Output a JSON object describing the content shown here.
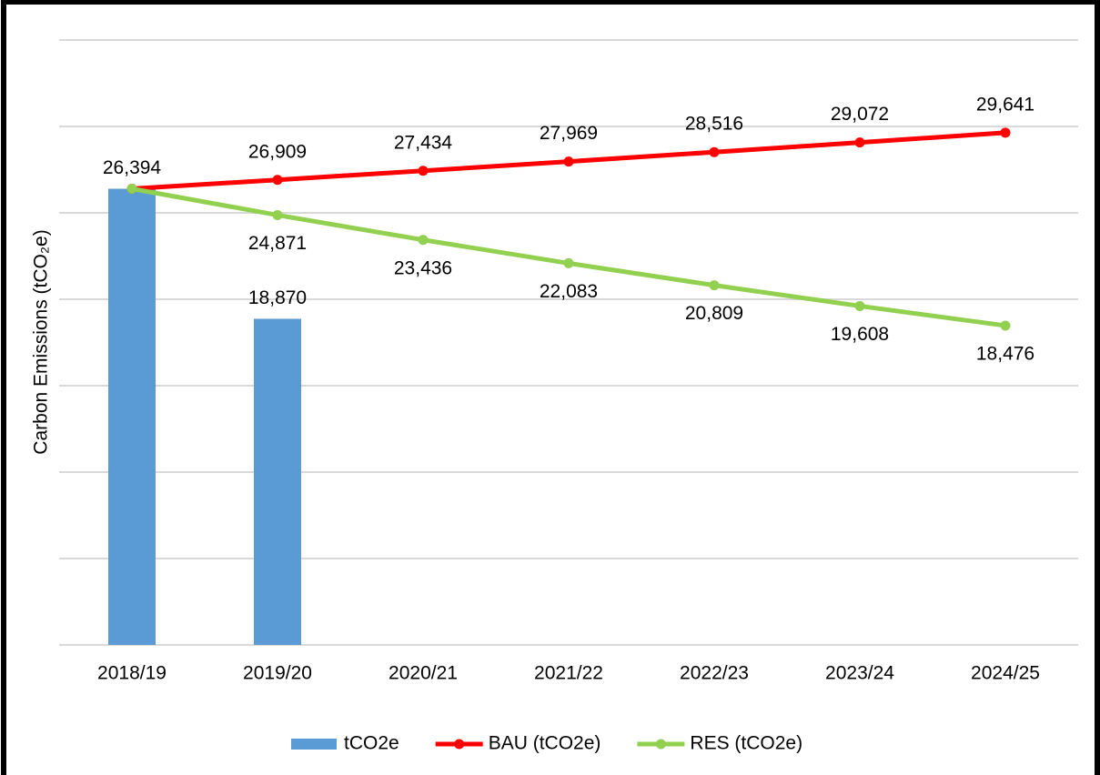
{
  "chart_data": {
    "type": "bar_line",
    "y_label": "Carbon Emissions (tCO₂e)",
    "categories": [
      "2018/19",
      "2019/20",
      "2020/21",
      "2021/22",
      "2022/23",
      "2023/24",
      "2024/25"
    ],
    "series": [
      {
        "name": "tCO2e",
        "type": "bar",
        "color": "#5b9bd5",
        "values": [
          26394,
          18870,
          null,
          null,
          null,
          null,
          null
        ],
        "value_labels": [
          "26,394",
          "18,870",
          null,
          null,
          null,
          null,
          null
        ]
      },
      {
        "name": "BAU (tCO2e)",
        "type": "line",
        "color": "#ff0000",
        "values": [
          26394,
          26909,
          27434,
          27969,
          28516,
          29072,
          29641
        ],
        "value_labels": [
          null,
          "26,909",
          "27,434",
          "27,969",
          "28,516",
          "29,072",
          "29,641"
        ],
        "label_position": "above"
      },
      {
        "name": "RES (tCO2e)",
        "type": "line",
        "color": "#92d050",
        "values": [
          26394,
          24871,
          23436,
          22083,
          20809,
          19608,
          18476
        ],
        "value_labels": [
          null,
          "24,871",
          "23,436",
          "22,083",
          "20,809",
          "19,608",
          "18,476"
        ],
        "label_position": "below"
      }
    ],
    "ylim": [
      0,
      35000
    ],
    "yticks": [
      0,
      5000,
      10000,
      15000,
      20000,
      25000,
      30000,
      35000
    ],
    "grid": true,
    "legend": "bottom"
  }
}
